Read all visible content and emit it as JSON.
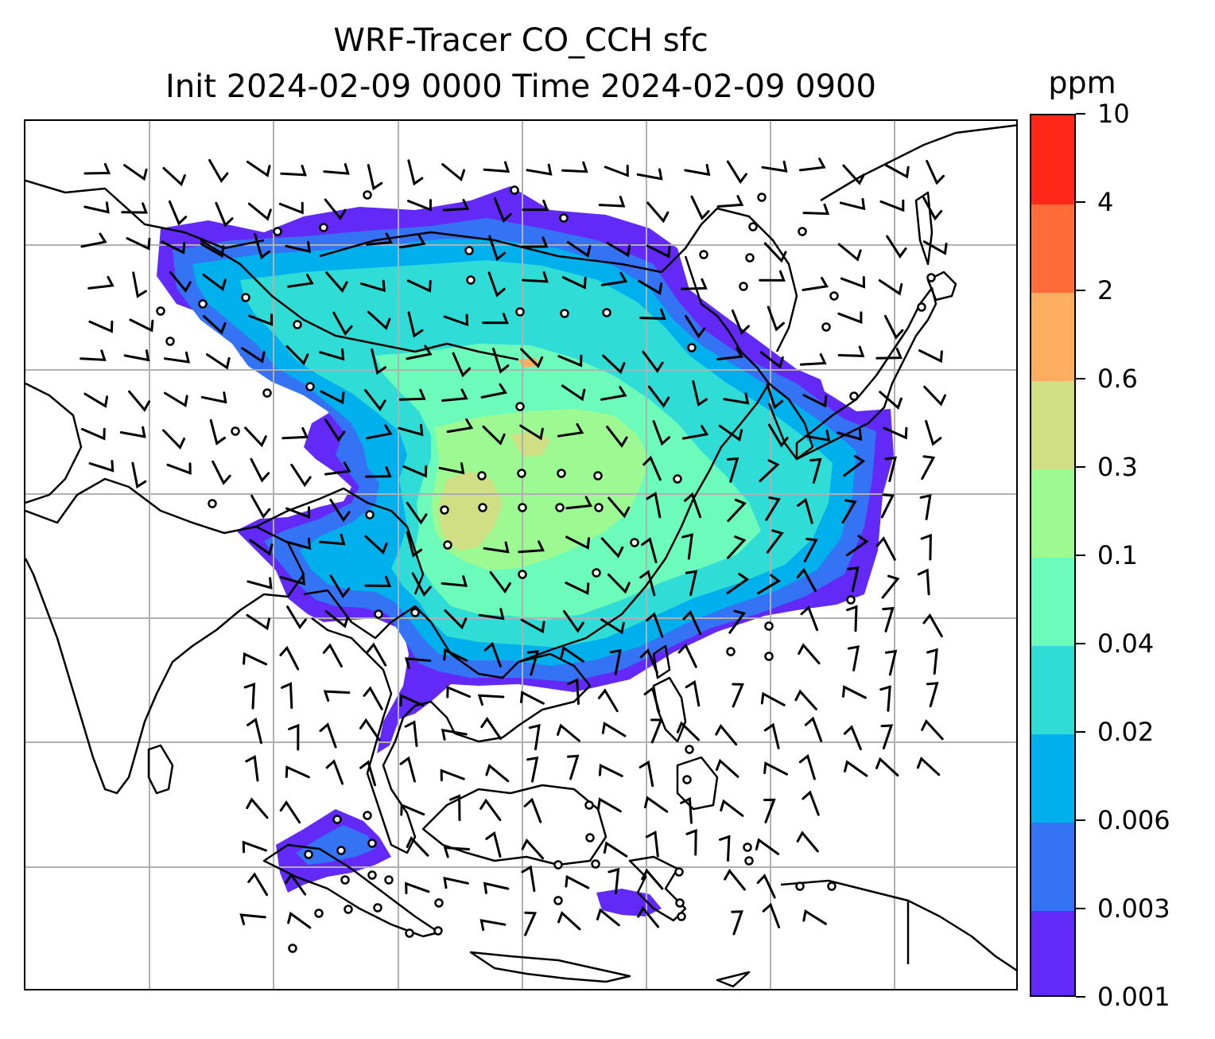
{
  "title": {
    "line1": "WRF-Tracer CO_CCH sfc",
    "line2": "Init 2024-02-09 0000 Time 2024-02-09 0900"
  },
  "colorbar": {
    "unit": "ppm",
    "levels": [
      "0.001",
      "0.003",
      "0.006",
      "0.02",
      "0.04",
      "0.1",
      "0.3",
      "0.6",
      "2",
      "4",
      "10"
    ],
    "colors": [
      "#6229f7",
      "#3473f4",
      "#00b0ec",
      "#2fdcd6",
      "#6cfbbb",
      "#9df991",
      "#d1df84",
      "#feae61",
      "#ff6c39",
      "#ff2718"
    ]
  },
  "map": {
    "projection": "Lambert conformal",
    "region": "East Asia / Southeast Asia",
    "gridlines": true,
    "wind_barbs": true,
    "colors": {
      "coastline": "#000000",
      "gridline": "#b0b0b0"
    }
  }
}
